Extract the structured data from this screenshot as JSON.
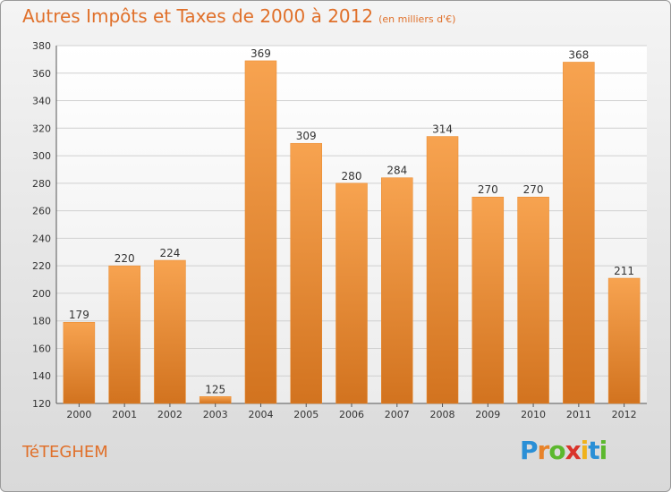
{
  "chart_data": {
    "type": "bar",
    "title": "Autres Impôts et Taxes de 2000 à 2012",
    "subtitle": "(en milliers d'€)",
    "categories": [
      "2000",
      "2001",
      "2002",
      "2003",
      "2004",
      "2005",
      "2006",
      "2007",
      "2008",
      "2009",
      "2010",
      "2011",
      "2012"
    ],
    "values": [
      179,
      220,
      224,
      125,
      369,
      309,
      280,
      284,
      314,
      270,
      270,
      368,
      211
    ],
    "xlabel": "",
    "ylabel": "",
    "ylim": [
      120,
      380
    ],
    "yticks": [
      120,
      140,
      160,
      180,
      200,
      220,
      240,
      260,
      280,
      300,
      320,
      340,
      360,
      380
    ],
    "grid": true,
    "bar_color": "#f0932f"
  },
  "footer": {
    "city": "TéTEGHEM",
    "logo_letters": [
      "P",
      "r",
      "o",
      "x",
      "i",
      "t",
      "i"
    ],
    "logo_colors": [
      "#2a8fd6",
      "#e8832a",
      "#5cb82e",
      "#d9342b",
      "#f0b21b",
      "#2a8fd6",
      "#5cb82e"
    ]
  }
}
